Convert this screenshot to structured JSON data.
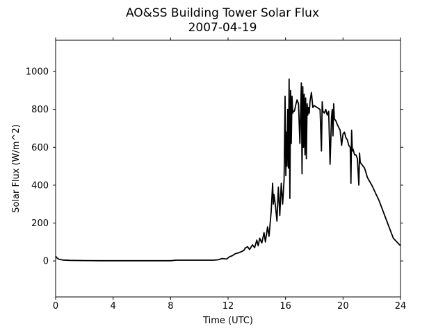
{
  "chart_data": {
    "type": "line",
    "title": "AO&SS Building Tower Solar Flux",
    "subtitle": "2007-04-19",
    "xlabel": "Time (UTC)",
    "ylabel": "Solar Flux (W/m^2)",
    "xlim": [
      0,
      24
    ],
    "ylim": [
      -190,
      1165
    ],
    "xticks": [
      0,
      4,
      8,
      12,
      16,
      20,
      24
    ],
    "yticks": [
      0,
      200,
      400,
      600,
      800,
      1000
    ],
    "grid": false,
    "line_color": "#000000",
    "series": [
      {
        "x": [
          0,
          0.1,
          0.25,
          0.5,
          1,
          2,
          3,
          4,
          5,
          6,
          7,
          8,
          8.4,
          9,
          10,
          11,
          11.3,
          11.6,
          11.9,
          12.1,
          12.3,
          12.5,
          12.7,
          12.9,
          13.1,
          13.2,
          13.35,
          13.5,
          13.7,
          13.85,
          14,
          14.1,
          14.2,
          14.35,
          14.5,
          14.6,
          14.75,
          14.85,
          15,
          15.1,
          15.15,
          15.2,
          15.3,
          15.4,
          15.5,
          15.6,
          15.7,
          15.8,
          15.9,
          15.97,
          16.02,
          16.05,
          16.1,
          16.15,
          16.2,
          16.25,
          16.3,
          16.35,
          16.4,
          16.45,
          16.5,
          16.55,
          16.6,
          16.65,
          16.7,
          16.8,
          16.9,
          17,
          17.1,
          17.15,
          17.2,
          17.25,
          17.3,
          17.35,
          17.4,
          17.45,
          17.5,
          17.55,
          17.6,
          17.65,
          17.7,
          17.8,
          17.9,
          18,
          18.2,
          18.4,
          18.5,
          18.55,
          18.6,
          18.7,
          18.8,
          18.9,
          19,
          19.1,
          19.2,
          19.25,
          19.3,
          19.35,
          19.4,
          19.5,
          19.6,
          19.8,
          19.9,
          20,
          20.1,
          20.2,
          20.3,
          20.4,
          20.5,
          20.55,
          20.6,
          20.65,
          20.7,
          20.8,
          20.9,
          21,
          21.1,
          21.15,
          21.2,
          21.3,
          21.5,
          21.7,
          22,
          22.5,
          23,
          23.5,
          24
        ],
        "y": [
          25,
          15,
          8,
          5,
          3,
          2,
          1,
          1,
          1,
          1,
          1,
          1,
          4,
          4,
          4,
          4,
          6,
          13,
          10,
          22,
          28,
          38,
          42,
          48,
          55,
          68,
          75,
          60,
          85,
          70,
          110,
          80,
          120,
          95,
          150,
          100,
          180,
          130,
          260,
          410,
          300,
          350,
          290,
          210,
          390,
          240,
          410,
          300,
          430,
          870,
          450,
          680,
          500,
          800,
          490,
          960,
          330,
          900,
          620,
          870,
          780,
          790,
          790,
          800,
          820,
          850,
          830,
          620,
          940,
          460,
          920,
          600,
          880,
          560,
          860,
          540,
          830,
          770,
          810,
          780,
          840,
          890,
          810,
          820,
          810,
          800,
          580,
          840,
          790,
          780,
          800,
          770,
          790,
          510,
          760,
          800,
          660,
          830,
          750,
          740,
          720,
          690,
          610,
          670,
          680,
          650,
          640,
          610,
          600,
          410,
          690,
          580,
          590,
          560,
          560,
          540,
          400,
          570,
          520,
          510,
          490,
          440,
          400,
          320,
          220,
          120,
          80
        ]
      }
    ]
  }
}
